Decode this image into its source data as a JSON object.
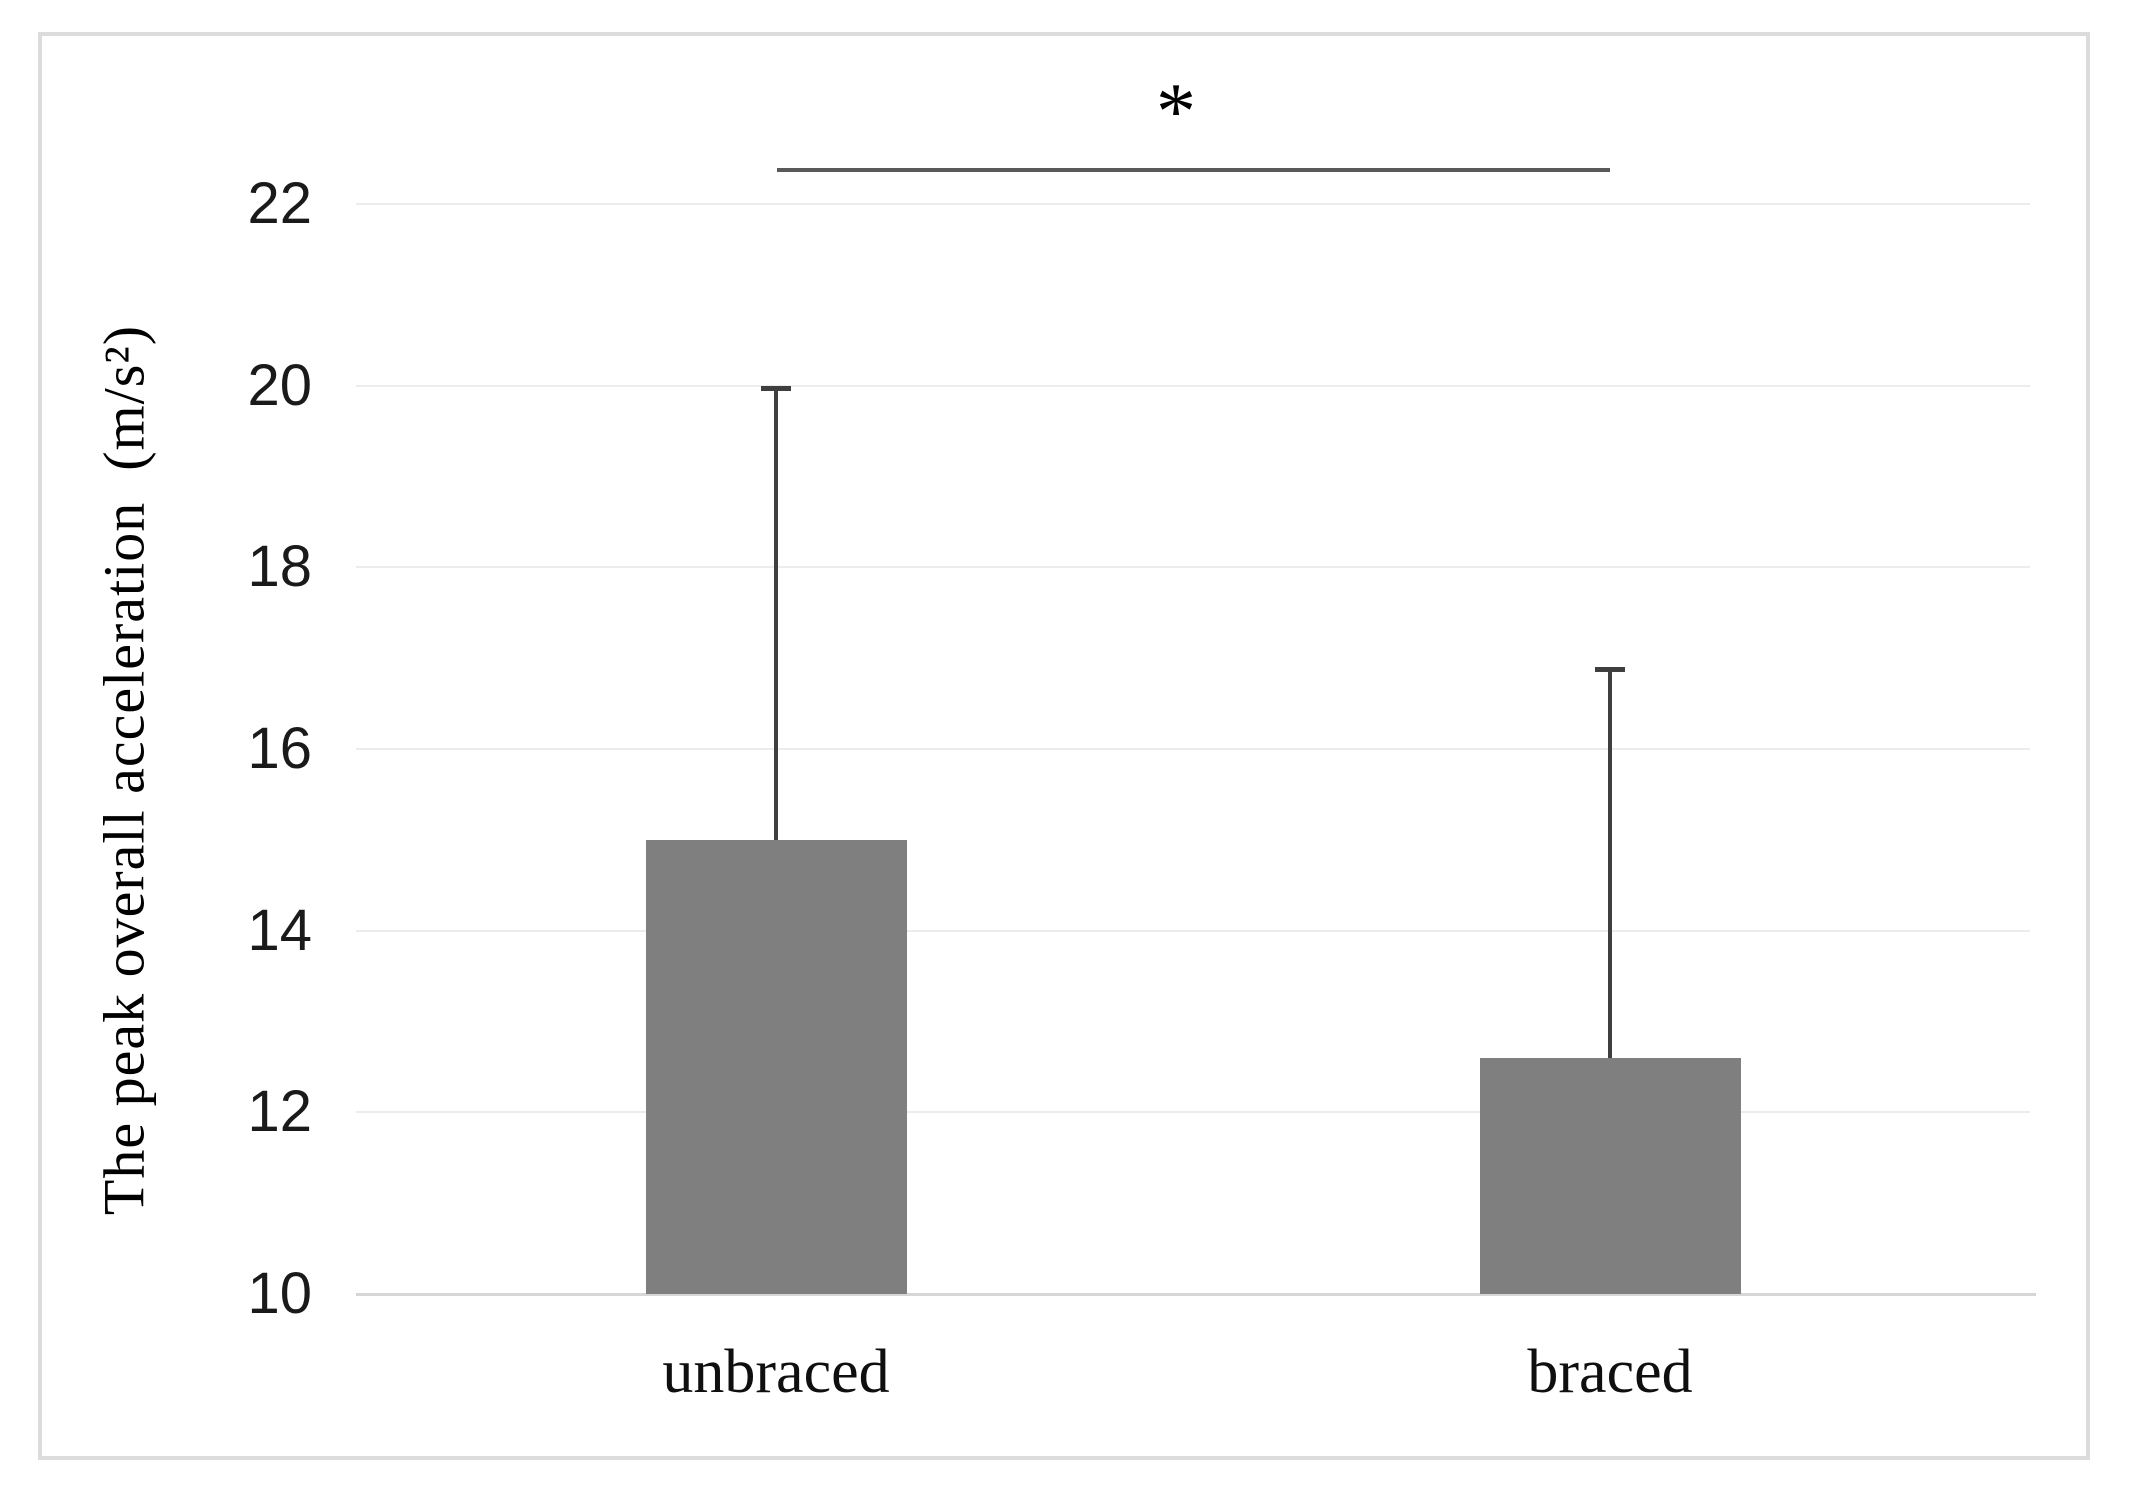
{
  "figure": {
    "background": "#ffffff",
    "border_color": "#dcdcdc"
  },
  "chart_data": {
    "type": "bar",
    "title": "",
    "categories": [
      "unbraced",
      "braced"
    ],
    "values": [
      15.0,
      12.6
    ],
    "errors_upper_sd": [
      5.0,
      4.3
    ],
    "error_bar_tops": [
      20.0,
      16.9
    ],
    "ylabel": "The peak overall acceleration  (m/s²)",
    "xlabel": "",
    "ylim": [
      10,
      22
    ],
    "ytick_step": 2,
    "yticks": [
      10,
      12,
      14,
      16,
      18,
      20,
      22
    ],
    "grid": true,
    "legend": false,
    "bar_color": "#7f7f7f",
    "gridline_color": "#ececec",
    "axis_line_color": "#d6d6d6",
    "error_bar_color": "#3f3f3f",
    "tick_label_color": "#1a1a1a",
    "text_color": "#0f0f0f",
    "significance": {
      "symbol": "*",
      "between": [
        "unbraced",
        "braced"
      ],
      "line_color": "#595959"
    }
  }
}
